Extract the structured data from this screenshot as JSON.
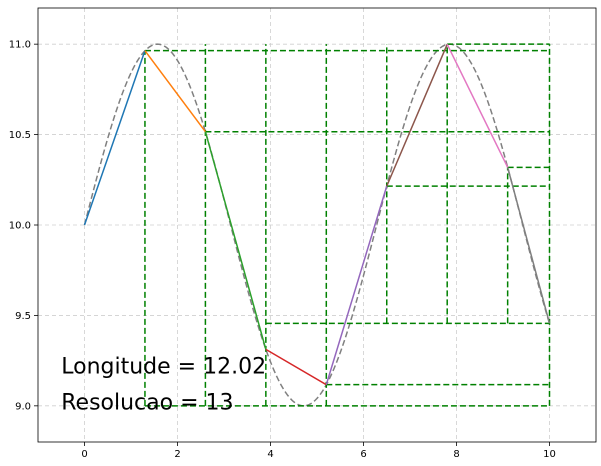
{
  "chart_data": {
    "type": "line",
    "title": "",
    "xlabel": "",
    "ylabel": "",
    "xlim": [
      -1,
      11
    ],
    "ylim": [
      8.8,
      11.2
    ],
    "xticks": [
      0,
      2,
      4,
      6,
      8,
      10
    ],
    "yticks": [
      9.0,
      9.5,
      10.0,
      10.5,
      11.0
    ],
    "xtick_labels": [
      "0",
      "2",
      "4",
      "6",
      "8",
      "10"
    ],
    "ytick_labels": [
      "9.0",
      "9.5",
      "10.0",
      "10.5",
      "11.0"
    ],
    "grid": true,
    "reference_curve": {
      "style": "dashed",
      "color": "#808080",
      "formula": "y = 10 + sin(x)",
      "x_range": [
        0,
        10
      ]
    },
    "polyline_points": [
      [
        0,
        10.0
      ],
      [
        1.3,
        10.964
      ],
      [
        2.6,
        10.516
      ],
      [
        3.9,
        9.312
      ],
      [
        5.2,
        9.117
      ],
      [
        6.5,
        10.215
      ],
      [
        7.8,
        10.999
      ],
      [
        9.1,
        10.319
      ],
      [
        10.0,
        9.456
      ]
    ],
    "segment_colors": [
      "#1f77b4",
      "#ff7f0e",
      "#2ca02c",
      "#d62728",
      "#9467bd",
      "#8c564b",
      "#e377c2",
      "#7f7f7f"
    ],
    "construction_lines": {
      "color": "#008000",
      "style": "dashed",
      "vertical": [
        {
          "x": 1.3,
          "y": [
            9.0,
            10.964
          ]
        },
        {
          "x": 2.6,
          "y": [
            9.0,
            11.0
          ]
        },
        {
          "x": 3.9,
          "y": [
            9.0,
            11.0
          ]
        },
        {
          "x": 5.2,
          "y": [
            9.0,
            11.0
          ]
        },
        {
          "x": 6.5,
          "y": [
            9.456,
            11.0
          ]
        },
        {
          "x": 7.8,
          "y": [
            9.456,
            11.0
          ]
        },
        {
          "x": 9.1,
          "y": [
            9.456,
            10.319
          ]
        },
        {
          "x": 10.0,
          "y": [
            9.0,
            11.0
          ]
        }
      ],
      "horizontal": [
        {
          "y": 10.964,
          "x": [
            1.3,
            10.0
          ]
        },
        {
          "y": 11.0,
          "x": [
            7.8,
            10.0
          ]
        },
        {
          "y": 10.516,
          "x": [
            2.6,
            10.0
          ]
        },
        {
          "y": 10.319,
          "x": [
            9.1,
            10.0
          ]
        },
        {
          "y": 10.215,
          "x": [
            6.5,
            10.0
          ]
        },
        {
          "y": 9.456,
          "x": [
            3.9,
            10.0
          ]
        },
        {
          "y": 9.117,
          "x": [
            5.2,
            10.0
          ]
        },
        {
          "y": 9.0,
          "x": [
            1.3,
            10.0
          ]
        }
      ]
    },
    "annotations": [
      {
        "text": "Longitude = 12.02",
        "x": -0.5,
        "y": 9.18
      },
      {
        "text": "Resolucao = 13",
        "x": -0.5,
        "y": 8.98
      }
    ]
  }
}
